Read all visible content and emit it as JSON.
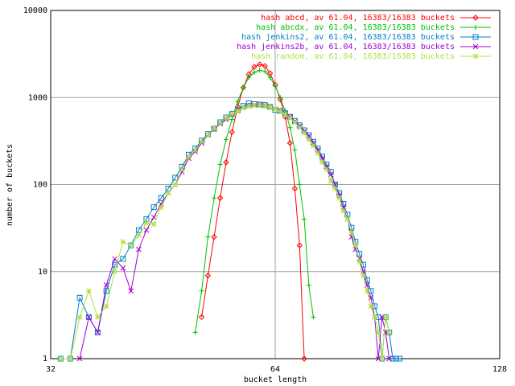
{
  "chart_data": {
    "type": "line",
    "xlabel": "bucket length",
    "ylabel": "number of buckets",
    "xscale": "log",
    "yscale": "log",
    "grid": true,
    "legend": "top-right",
    "xlim": [
      32,
      128
    ],
    "xticks": [
      32,
      64,
      128
    ],
    "ylim": [
      1,
      10000
    ],
    "yticks": [
      1,
      10,
      100,
      1000,
      10000
    ],
    "series": [
      {
        "name": "hash abcd, av 61.04, 16383/16383 buckets",
        "color": "#ff0000",
        "marker": "diamond",
        "x": [
          51,
          52,
          53,
          54,
          55,
          56,
          57,
          58,
          59,
          60,
          61,
          62,
          63,
          64,
          65,
          66,
          67,
          68,
          69,
          70
        ],
        "values": [
          3,
          9,
          25,
          70,
          180,
          400,
          780,
          1300,
          1850,
          2250,
          2400,
          2300,
          1900,
          1400,
          950,
          600,
          300,
          90,
          20,
          1
        ]
      },
      {
        "name": "hash abcdx, av 61.04, 16383/16383 buckets",
        "color": "#00c000",
        "marker": "plus",
        "x": [
          50,
          51,
          52,
          53,
          54,
          55,
          56,
          57,
          58,
          59,
          60,
          61,
          62,
          63,
          64,
          65,
          66,
          67,
          68,
          69,
          70,
          71,
          72
        ],
        "values": [
          2,
          6,
          25,
          70,
          170,
          330,
          560,
          900,
          1300,
          1700,
          1950,
          2050,
          2000,
          1700,
          1350,
          1000,
          700,
          450,
          250,
          100,
          40,
          7,
          3
        ]
      },
      {
        "name": "hash jenkins2, av 61.04, 16383/16383 buckets",
        "color": "#0080c0",
        "marker": "square",
        "x": [
          33,
          34,
          35,
          36,
          37,
          38,
          39,
          40,
          41,
          42,
          43,
          44,
          45,
          46,
          47,
          48,
          49,
          50,
          51,
          52,
          53,
          54,
          55,
          56,
          57,
          58,
          59,
          60,
          61,
          62,
          63,
          64,
          65,
          66,
          67,
          68,
          69,
          70,
          71,
          72,
          73,
          74,
          75,
          76,
          77,
          78,
          79,
          80,
          81,
          82,
          83,
          84,
          85,
          86,
          87,
          88,
          89,
          90,
          91,
          92,
          93,
          94
        ],
        "values": [
          1,
          1,
          5,
          3,
          2,
          6,
          12,
          14,
          20,
          30,
          40,
          55,
          70,
          90,
          120,
          160,
          220,
          260,
          320,
          380,
          440,
          520,
          590,
          650,
          720,
          800,
          860,
          840,
          830,
          820,
          780,
          720,
          700,
          660,
          600,
          540,
          480,
          420,
          370,
          310,
          260,
          210,
          170,
          140,
          100,
          80,
          60,
          45,
          32,
          22,
          16,
          12,
          8,
          6,
          4,
          3,
          1,
          3,
          2,
          1,
          1,
          1
        ]
      },
      {
        "name": "hash jenkins2b, av 61.04, 16383/16383 buckets",
        "color": "#a000d0",
        "marker": "cross",
        "x": [
          35,
          36,
          37,
          38,
          39,
          40,
          41,
          42,
          43,
          44,
          45,
          46,
          47,
          48,
          49,
          50,
          51,
          52,
          53,
          54,
          55,
          56,
          57,
          58,
          59,
          60,
          61,
          62,
          63,
          64,
          65,
          66,
          67,
          68,
          69,
          70,
          71,
          72,
          73,
          74,
          75,
          76,
          77,
          78,
          79,
          80,
          81,
          82,
          83,
          84,
          85,
          86,
          87,
          88,
          89,
          90,
          91
        ],
        "values": [
          1,
          3,
          2,
          7,
          14,
          11,
          6,
          18,
          30,
          42,
          60,
          80,
          100,
          140,
          200,
          240,
          300,
          370,
          430,
          500,
          560,
          640,
          700,
          760,
          800,
          820,
          830,
          810,
          780,
          740,
          700,
          650,
          600,
          530,
          470,
          410,
          360,
          300,
          250,
          200,
          160,
          130,
          100,
          75,
          55,
          40,
          25,
          18,
          14,
          10,
          7,
          5,
          3,
          1,
          3,
          2,
          1
        ]
      },
      {
        "name": "hash random, av 61.04, 16383/16383 buckets",
        "color": "#b0e040",
        "marker": "star",
        "x": [
          33,
          34,
          35,
          36,
          37,
          38,
          39,
          40,
          41,
          42,
          43,
          44,
          45,
          46,
          47,
          48,
          49,
          50,
          51,
          52,
          53,
          54,
          55,
          56,
          57,
          58,
          59,
          60,
          61,
          62,
          63,
          64,
          65,
          66,
          67,
          68,
          69,
          70,
          71,
          72,
          73,
          74,
          75,
          76,
          77,
          78,
          79,
          80,
          81,
          82,
          83,
          84,
          85,
          86,
          87,
          88,
          89,
          90,
          91
        ],
        "values": [
          1,
          1,
          3,
          6,
          3,
          4,
          10,
          22,
          20,
          26,
          36,
          35,
          55,
          80,
          100,
          150,
          210,
          250,
          310,
          370,
          440,
          510,
          580,
          650,
          700,
          760,
          790,
          810,
          820,
          800,
          770,
          740,
          690,
          640,
          580,
          520,
          450,
          390,
          330,
          280,
          230,
          180,
          150,
          110,
          90,
          70,
          50,
          40,
          28,
          20,
          13,
          9,
          6,
          4,
          3,
          2,
          1,
          3,
          2
        ]
      }
    ]
  }
}
